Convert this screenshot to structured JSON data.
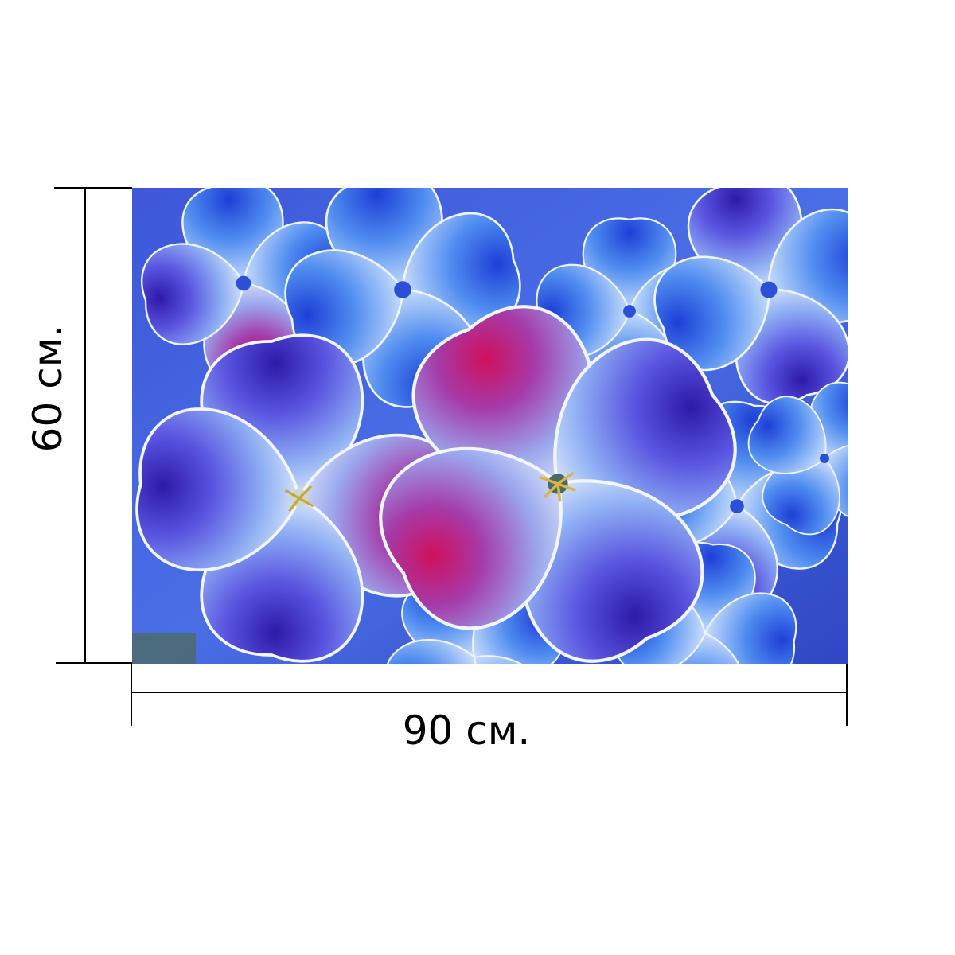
{
  "dimensions": {
    "height_label": "60 см.",
    "width_label": "90 см."
  },
  "product_image": {
    "subject": "hydrangea-blossoms",
    "colors": {
      "background": "#ffffff",
      "lines": "#000000",
      "petal_light": "#cfe0fb",
      "petal_blue": "#4f78ec",
      "petal_violet": "#5431c4",
      "petal_magenta": "#d81e67"
    }
  }
}
